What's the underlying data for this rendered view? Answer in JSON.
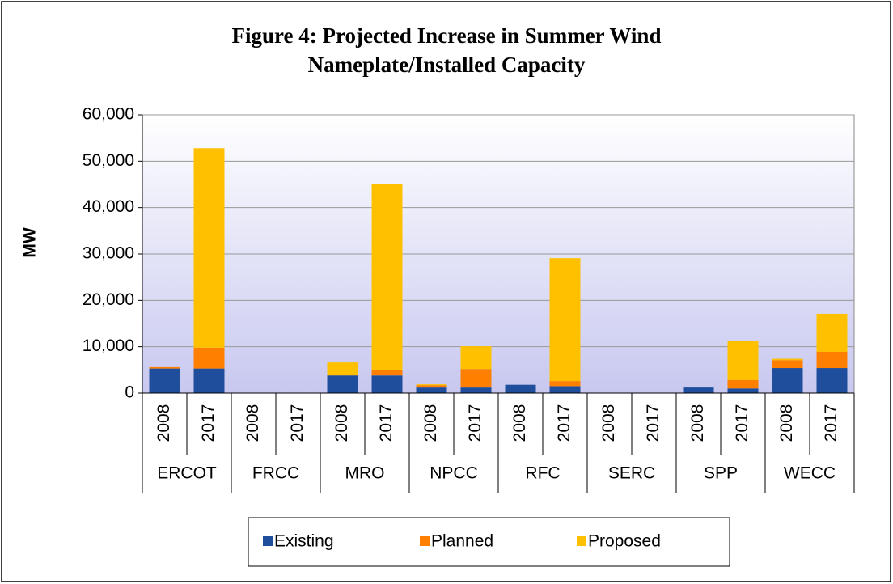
{
  "chart_data": {
    "type": "stacked_bar",
    "title": "Figure 4: Projected Increase in Summer Wind Nameplate/Installed Capacity",
    "y_label": "MW",
    "categories": [
      "2008",
      "2017",
      "2008",
      "2017",
      "2008",
      "2017",
      "2008",
      "2017",
      "2008",
      "2017",
      "2008",
      "2017",
      "2008",
      "2017",
      "2008",
      "2017"
    ],
    "groups": [
      "ERCOT",
      "FRCC",
      "MRO",
      "NPCC",
      "RFC",
      "SERC",
      "SPP",
      "WECC"
    ],
    "series": [
      {
        "name": "Existing",
        "color": "#1f4e9c",
        "values": [
          5300,
          5300,
          0,
          0,
          3800,
          3800,
          1200,
          1200,
          1800,
          1500,
          0,
          0,
          1200,
          1000,
          5400,
          5400
        ]
      },
      {
        "name": "Planned",
        "color": "#ff7f00",
        "values": [
          300,
          4500,
          0,
          0,
          200,
          1200,
          500,
          4000,
          0,
          1100,
          0,
          0,
          0,
          1800,
          1700,
          3500
        ]
      },
      {
        "name": "Proposed",
        "color": "#ffc000",
        "values": [
          0,
          43000,
          0,
          0,
          2600,
          40000,
          200,
          4900,
          0,
          26500,
          0,
          0,
          0,
          8500,
          300,
          8200
        ]
      }
    ],
    "ylim": [
      0,
      60000
    ],
    "yticks": [
      0,
      {
        "value": 10000,
        "label": "10,000"
      },
      {
        "value": 20000,
        "label": "20,000"
      },
      {
        "value": 30000,
        "label": "30,000"
      },
      {
        "value": 40000,
        "label": "40,000"
      },
      {
        "value": 50000,
        "label": "50,000"
      },
      {
        "value": 60000,
        "label": "60,000"
      }
    ],
    "grid": true,
    "legend": "bottom"
  }
}
